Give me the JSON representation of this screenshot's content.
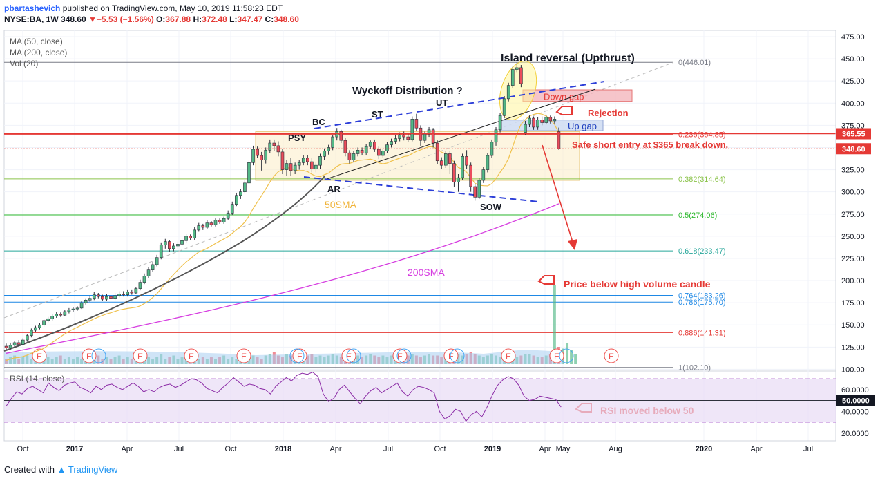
{
  "header": {
    "user": "pbartashevich",
    "published": "published on TradingView.com, May 10, 2019 11:58:23 EDT",
    "symbol": "NYSE:BA, 1W",
    "last": "348.60",
    "change": "−5.53 (−1.56%)",
    "o_label": "O:",
    "o": "367.88",
    "h_label": "H:",
    "h": "372.48",
    "l_label": "L:",
    "l": "347.47",
    "c_label": "C:",
    "c": "348.60"
  },
  "footer": {
    "created_with": "Created with",
    "brand": "TradingView"
  },
  "chart_data": {
    "type": "candlestick",
    "colors": {
      "up": "#53b987",
      "down": "#eb4d5c",
      "ma50": "#f0c14b",
      "ma200": "#d63de0",
      "trend": "#555555",
      "channel": "#2c3ed8",
      "annotation": "#e02020"
    },
    "legend": [
      "MA (50, close)",
      "MA (200, close)",
      "Vol (20)"
    ],
    "x_labels": [
      "Oct",
      "2017",
      "Apr",
      "Jul",
      "Oct",
      "2018",
      "Apr",
      "Jul",
      "Oct",
      "2019",
      "Apr",
      "May",
      "Aug",
      "2020",
      "Apr",
      "Jul"
    ],
    "price_axis": {
      "ticks": [
        475,
        450,
        425,
        400,
        375,
        350,
        325,
        300,
        275,
        250,
        225,
        200,
        175,
        150,
        125,
        100
      ],
      "tick_labels": [
        "475.00",
        "450.00",
        "425.00",
        "400.00",
        "375.00",
        "350.00",
        "325.00",
        "300.00",
        "275.00",
        "250.00",
        "225.00",
        "200.00",
        "175.00",
        "150.00",
        "125.00",
        "100.00"
      ],
      "range": [
        98,
        482
      ]
    },
    "price_tags": [
      {
        "label": "365.55",
        "value": 365.55,
        "color": "#e53935"
      },
      {
        "label": "348.60",
        "value": 348.6,
        "color": "#e53935"
      }
    ],
    "fib_levels": [
      {
        "label": "0(446.01)",
        "value": 446.01,
        "color": "#787b86"
      },
      {
        "label": "0.236(364.85)",
        "value": 364.85,
        "color": "#e53935"
      },
      {
        "label": "0.382(314.64)",
        "value": 314.64,
        "color": "#8bc34a"
      },
      {
        "label": "0.5(274.06)",
        "value": 274.06,
        "color": "#2eb82e"
      },
      {
        "label": "0.618(233.47)",
        "value": 233.47,
        "color": "#26a69a"
      },
      {
        "label": "0.764(183.26)",
        "value": 183.26,
        "color": "#1e88e5"
      },
      {
        "label": "0.786(175.70)",
        "value": 175.7,
        "color": "#1e88e5"
      },
      {
        "label": "0.886(141.31)",
        "value": 141.31,
        "color": "#e53935"
      },
      {
        "label": "1(102.10)",
        "value": 102.1,
        "color": "#787b86"
      }
    ],
    "annotations": {
      "title": "Island reversal (Upthrust)",
      "wyckoff": "Wyckoff Distribution ?",
      "down_gap": "Down gap",
      "up_gap": "Up gap",
      "rejection": "Rejection",
      "safe_short": "Safe short entry at $365 break down.",
      "price_below": "Price below high volume candle",
      "rsi_below": "RSI moved below 50",
      "ma50": "50SMA",
      "ma200": "200SMA",
      "psy": "PSY",
      "bc": "BC",
      "ar": "AR",
      "st": "ST",
      "ut": "UT",
      "sow": "SOW"
    },
    "earnings_marker": "E",
    "rsi": {
      "title": "RSI (14, close)",
      "tick_labels": [
        "60.0000",
        "40.0000",
        "20.0000"
      ],
      "ticks": [
        60,
        40,
        20
      ],
      "current_label": "50.0000",
      "range": [
        13,
        77
      ],
      "band": [
        30,
        70
      ],
      "values": [
        45,
        52,
        58,
        56,
        61,
        63,
        60,
        57,
        66,
        62,
        59,
        64,
        66,
        67,
        62,
        60,
        57,
        63,
        60,
        64,
        65,
        62,
        60,
        63,
        66,
        63,
        58,
        60,
        58,
        62,
        64,
        65,
        62,
        64,
        67,
        70,
        69,
        66,
        61,
        59,
        57,
        62,
        66,
        71,
        67,
        63,
        65,
        64,
        61,
        60,
        56,
        63,
        67,
        71,
        68,
        73,
        75,
        74,
        76,
        72,
        56,
        49,
        52,
        60,
        64,
        58,
        52,
        47,
        54,
        59,
        62,
        57,
        60,
        63,
        66,
        58,
        54,
        60,
        63,
        62,
        60,
        57,
        40,
        33,
        36,
        42,
        40,
        31,
        37,
        40,
        35,
        44,
        55,
        64,
        69,
        72,
        70,
        64,
        54,
        50,
        51,
        54,
        53,
        52,
        51,
        44
      ]
    },
    "candles": [
      [
        126,
        124,
        129,
        122
      ],
      [
        124,
        127,
        130,
        122
      ],
      [
        127,
        130,
        132,
        125
      ],
      [
        130,
        128,
        133,
        126
      ],
      [
        128,
        133,
        135,
        127
      ],
      [
        133,
        138,
        140,
        131
      ],
      [
        138,
        144,
        146,
        136
      ],
      [
        144,
        147,
        149,
        142
      ],
      [
        147,
        150,
        152,
        145
      ],
      [
        150,
        155,
        157,
        148
      ],
      [
        155,
        157,
        159,
        153
      ],
      [
        157,
        160,
        162,
        155
      ],
      [
        160,
        162,
        165,
        158
      ],
      [
        162,
        161,
        164,
        159
      ],
      [
        161,
        165,
        167,
        160
      ],
      [
        165,
        167,
        169,
        163
      ],
      [
        167,
        168,
        170,
        165
      ],
      [
        168,
        169,
        171,
        166
      ],
      [
        169,
        175,
        177,
        168
      ],
      [
        175,
        178,
        180,
        173
      ],
      [
        178,
        180,
        183,
        176
      ],
      [
        180,
        184,
        187,
        178
      ],
      [
        184,
        182,
        186,
        180
      ],
      [
        182,
        179,
        184,
        177
      ],
      [
        179,
        182,
        185,
        177
      ],
      [
        182,
        180,
        184,
        178
      ],
      [
        180,
        183,
        186,
        178
      ],
      [
        183,
        185,
        188,
        181
      ],
      [
        185,
        184,
        188,
        182
      ],
      [
        184,
        187,
        190,
        182
      ],
      [
        187,
        186,
        190,
        184
      ],
      [
        186,
        191,
        193,
        185
      ],
      [
        191,
        198,
        201,
        189
      ],
      [
        198,
        205,
        208,
        196
      ],
      [
        205,
        212,
        215,
        203
      ],
      [
        212,
        218,
        221,
        210
      ],
      [
        218,
        226,
        229,
        216
      ],
      [
        226,
        240,
        243,
        224
      ],
      [
        240,
        244,
        247,
        236
      ],
      [
        244,
        236,
        246,
        232
      ],
      [
        236,
        239,
        242,
        233
      ],
      [
        239,
        241,
        244,
        236
      ],
      [
        241,
        245,
        248,
        239
      ],
      [
        245,
        250,
        253,
        242
      ],
      [
        250,
        248,
        252,
        246
      ],
      [
        248,
        257,
        260,
        246
      ],
      [
        257,
        262,
        265,
        255
      ],
      [
        262,
        260,
        264,
        257
      ],
      [
        260,
        265,
        268,
        258
      ],
      [
        265,
        263,
        267,
        261
      ],
      [
        263,
        268,
        270,
        261
      ],
      [
        268,
        266,
        270,
        264
      ],
      [
        266,
        270,
        272,
        264
      ],
      [
        270,
        276,
        279,
        268
      ],
      [
        276,
        286,
        289,
        274
      ],
      [
        286,
        296,
        299,
        284
      ],
      [
        296,
        300,
        303,
        292
      ],
      [
        300,
        310,
        313,
        298
      ],
      [
        310,
        333,
        336,
        308
      ],
      [
        333,
        348,
        352,
        330
      ],
      [
        348,
        341,
        351,
        338
      ],
      [
        341,
        336,
        345,
        324
      ],
      [
        336,
        347,
        350,
        332
      ],
      [
        347,
        355,
        359,
        344
      ],
      [
        355,
        352,
        359,
        346
      ],
      [
        352,
        345,
        357,
        340
      ],
      [
        345,
        325,
        348,
        320
      ],
      [
        325,
        332,
        336,
        318
      ],
      [
        332,
        324,
        338,
        318
      ],
      [
        324,
        330,
        333,
        320
      ],
      [
        330,
        333,
        336,
        325
      ],
      [
        333,
        338,
        341,
        330
      ],
      [
        338,
        334,
        341,
        330
      ],
      [
        334,
        326,
        338,
        322
      ],
      [
        326,
        330,
        334,
        322
      ],
      [
        330,
        340,
        343,
        326
      ],
      [
        340,
        346,
        349,
        336
      ],
      [
        346,
        350,
        353,
        342
      ],
      [
        350,
        362,
        364,
        347
      ],
      [
        362,
        368,
        372,
        358
      ],
      [
        368,
        358,
        370,
        355
      ],
      [
        358,
        344,
        361,
        340
      ],
      [
        344,
        336,
        347,
        332
      ],
      [
        336,
        343,
        346,
        334
      ],
      [
        343,
        347,
        350,
        340
      ],
      [
        347,
        344,
        350,
        341
      ],
      [
        344,
        351,
        354,
        341
      ],
      [
        351,
        356,
        358,
        348
      ],
      [
        356,
        348,
        359,
        345
      ],
      [
        348,
        341,
        351,
        337
      ],
      [
        341,
        346,
        349,
        338
      ],
      [
        346,
        353,
        356,
        344
      ],
      [
        353,
        357,
        360,
        350
      ],
      [
        357,
        360,
        364,
        354
      ],
      [
        360,
        364,
        367,
        357
      ],
      [
        364,
        362,
        368,
        358
      ],
      [
        362,
        359,
        366,
        356
      ],
      [
        359,
        382,
        385,
        357
      ],
      [
        382,
        372,
        388,
        369
      ],
      [
        372,
        358,
        375,
        352
      ],
      [
        358,
        365,
        368,
        355
      ],
      [
        365,
        370,
        373,
        362
      ],
      [
        370,
        355,
        372,
        350
      ],
      [
        355,
        335,
        358,
        331
      ],
      [
        335,
        330,
        339,
        326
      ],
      [
        330,
        343,
        346,
        327
      ],
      [
        343,
        332,
        346,
        320
      ],
      [
        332,
        311,
        335,
        306
      ],
      [
        311,
        316,
        320,
        300
      ],
      [
        316,
        340,
        343,
        313
      ],
      [
        340,
        330,
        347,
        326
      ],
      [
        330,
        306,
        333,
        300
      ],
      [
        306,
        294,
        309,
        290
      ],
      [
        294,
        313,
        316,
        292
      ],
      [
        313,
        325,
        328,
        310
      ],
      [
        325,
        341,
        344,
        322
      ],
      [
        341,
        356,
        359,
        338
      ],
      [
        356,
        370,
        373,
        352
      ],
      [
        370,
        386,
        389,
        367
      ],
      [
        386,
        405,
        408,
        383
      ],
      [
        405,
        420,
        423,
        402
      ],
      [
        420,
        438,
        441,
        417
      ],
      [
        438,
        440,
        446,
        435
      ],
      [
        440,
        422,
        443,
        418
      ],
      [
        367,
        376,
        380,
        364
      ],
      [
        376,
        383,
        386,
        373
      ],
      [
        383,
        373,
        385,
        370
      ],
      [
        373,
        381,
        384,
        370
      ],
      [
        381,
        378,
        385,
        375
      ],
      [
        378,
        384,
        387,
        376
      ],
      [
        384,
        380,
        386,
        377
      ],
      [
        380,
        382,
        385,
        377
      ],
      [
        367.88,
        348.6,
        372.48,
        347.47
      ]
    ],
    "volume_bar_heights": [
      0.3,
      0.4,
      0.5,
      0.3,
      0.4,
      0.5,
      0.3,
      0.4,
      0.5,
      0.3,
      0.4,
      0.3,
      0.4,
      0.5,
      0.3,
      0.4,
      0.3,
      0.4,
      0.3,
      0.4,
      0.3,
      0.4,
      0.5,
      0.3,
      0.4,
      0.3,
      0.4,
      0.5,
      0.3,
      0.4,
      0.3,
      0.4,
      0.5,
      0.3,
      0.4,
      0.3,
      0.4,
      0.6,
      0.3,
      0.4,
      0.5,
      0.3,
      0.4,
      0.3,
      0.4,
      0.5,
      0.3,
      0.4,
      0.3,
      0.4,
      0.3,
      0.4,
      0.5,
      0.3,
      0.4,
      0.3,
      0.5,
      0.4,
      0.6,
      0.5,
      0.4,
      0.3,
      0.5,
      0.6,
      0.7,
      0.5,
      0.4,
      0.6,
      0.5,
      0.4,
      0.5,
      0.4,
      0.5,
      0.6,
      0.4,
      0.5,
      0.4,
      0.5,
      0.6,
      0.5,
      0.4,
      0.5,
      0.4,
      0.5,
      0.5,
      0.4,
      0.5,
      0.6,
      0.5,
      0.4,
      0.5,
      0.4,
      0.5,
      0.6,
      0.5,
      0.4,
      0.5,
      0.6,
      0.5,
      0.4,
      0.5,
      0.6,
      0.5,
      0.5,
      0.4,
      0.6,
      0.5,
      0.7,
      0.6,
      0.5,
      0.6,
      0.7,
      0.6,
      0.5,
      0.4,
      0.5,
      0.6,
      0.5,
      0.4,
      0.5,
      0.6,
      0.5,
      0.4,
      0.5,
      0.6,
      0.6,
      0.5,
      0.4,
      0.4,
      0.5,
      0.6,
      4.6,
      1.0,
      0.9,
      1.2,
      0.8,
      0.6
    ]
  }
}
